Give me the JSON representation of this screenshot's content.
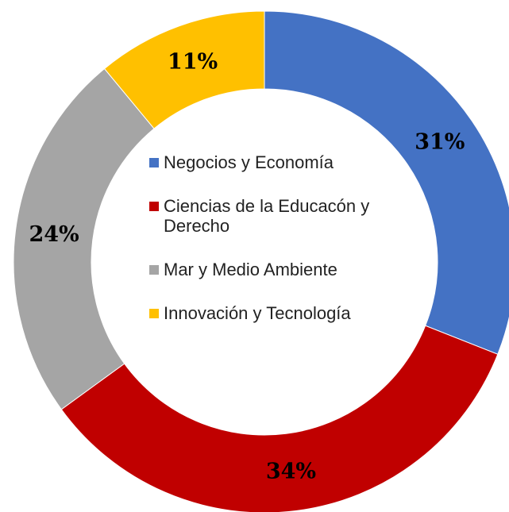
{
  "chart_data": {
    "type": "donut",
    "categories": [
      "Negocios y Economía",
      "Ciencias de la Educacón y Derecho",
      "Mar y Medio Ambiente",
      "Innovación y Tecnología"
    ],
    "values": [
      31,
      34,
      24,
      11
    ],
    "value_labels": [
      "31%",
      "34%",
      "24%",
      "11%"
    ],
    "colors": [
      "#4472c4",
      "#c00000",
      "#a5a5a5",
      "#ffc000"
    ],
    "legend": "center"
  }
}
